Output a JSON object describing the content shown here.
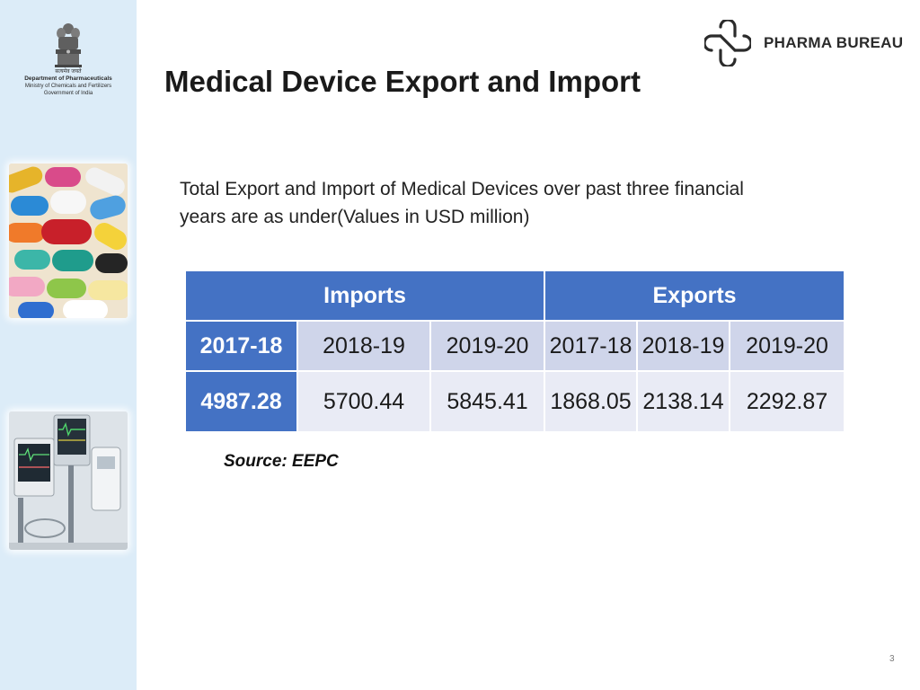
{
  "sidebar": {
    "emblem_lines": [
      "सत्यमेव जयते",
      "Department of Pharmaceuticals",
      "Ministry of Chemicals and Fertilizers",
      "Government of India"
    ]
  },
  "logo": {
    "text": "PHARMA BUREAU"
  },
  "title": "Medical Device Export and Import",
  "intro": {
    "line1": "Total Export and Import of Medical Devices over past three financial",
    "line2": "years are as under(Values in USD million)"
  },
  "table": {
    "groups": [
      "Imports",
      "Exports"
    ],
    "years": [
      "2017-18",
      "2018-19",
      "2019-20",
      "2017-18",
      "2018-19",
      "2019-20"
    ],
    "values": [
      "4987.28",
      "5700.44",
      "5845.41",
      "1868.05",
      "2138.14",
      "2292.87"
    ]
  },
  "source": "Source: EEPC",
  "page_number": "3",
  "colors": {
    "header_blue": "#4472c4",
    "sidebar_bg": "#dcecf8",
    "row_light": "#cfd5ea",
    "row_lighter": "#e9ebf5"
  }
}
